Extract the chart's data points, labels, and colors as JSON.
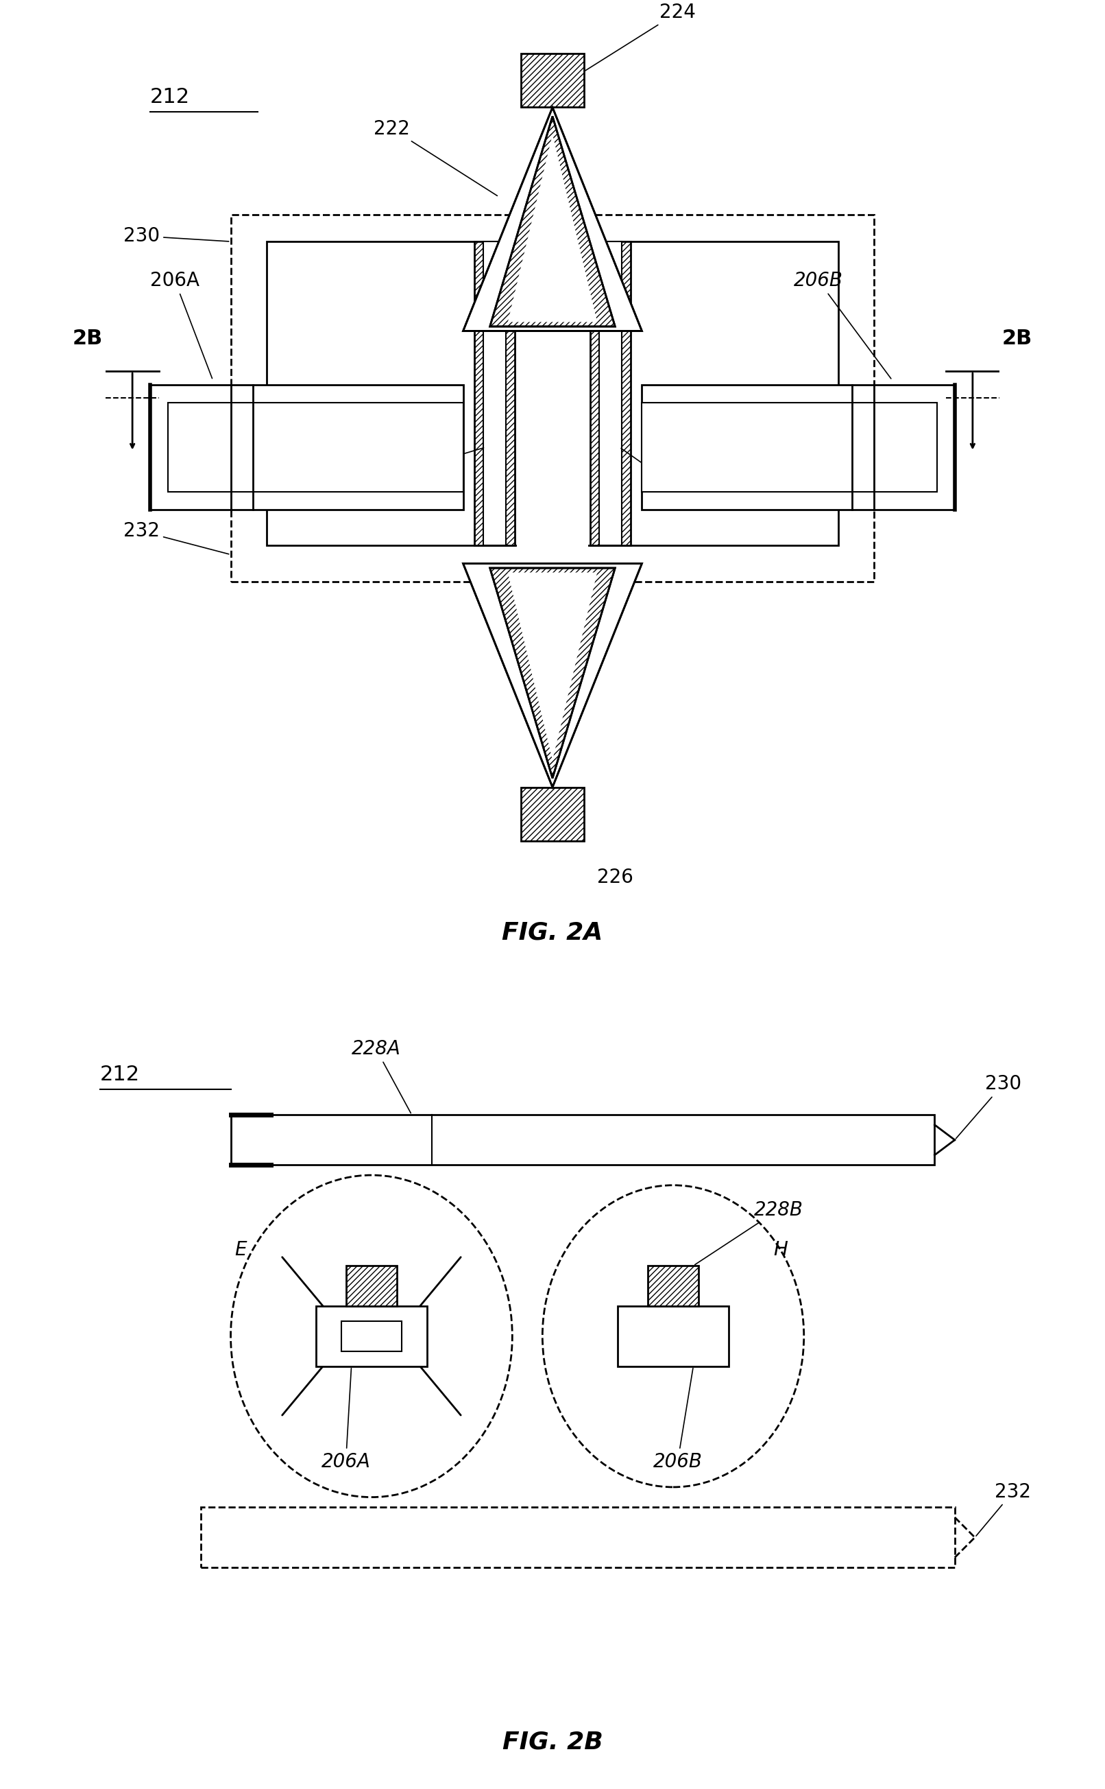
{
  "fig_title_2a": "FIG. 2A",
  "fig_title_2b": "FIG. 2B",
  "label_212a": "212",
  "label_212b": "212",
  "label_222": "222",
  "label_224": "224",
  "label_226": "226",
  "label_206a": "206A",
  "label_206b": "206B",
  "label_228a": "228A",
  "label_228b": "228B",
  "label_228a_b": "228A",
  "label_228b_b": "228B",
  "label_230a": "230",
  "label_230b": "230",
  "label_232a": "232",
  "label_232b": "232",
  "label_2b_left": "2B",
  "label_2b_right": "2B",
  "label_E": "E",
  "label_H": "H",
  "label_206a_b": "206A",
  "label_206b_b": "206B",
  "bg_color": "#ffffff",
  "line_color": "#000000",
  "lw": 2.0,
  "lw2": 1.5,
  "fs": 20,
  "fs_title": 26
}
